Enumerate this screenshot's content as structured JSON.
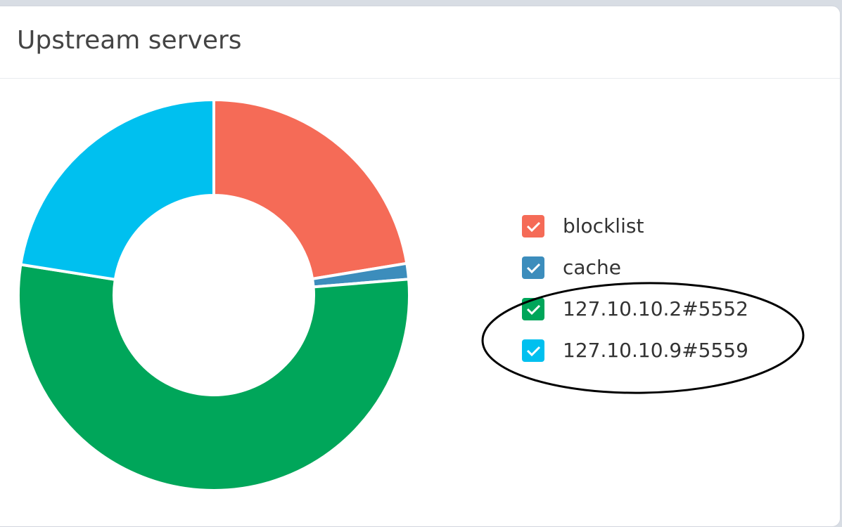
{
  "chart_data": {
    "type": "pie",
    "title": "Upstream servers",
    "categories": [
      "blocklist",
      "cache",
      "127.10.10.2#5552",
      "127.10.10.9#5559"
    ],
    "values": [
      22.4,
      1.3,
      53.8,
      22.5
    ],
    "colors": [
      "#f56b57",
      "#3c8dbc",
      "#00a65a",
      "#00c0ef"
    ]
  }
}
